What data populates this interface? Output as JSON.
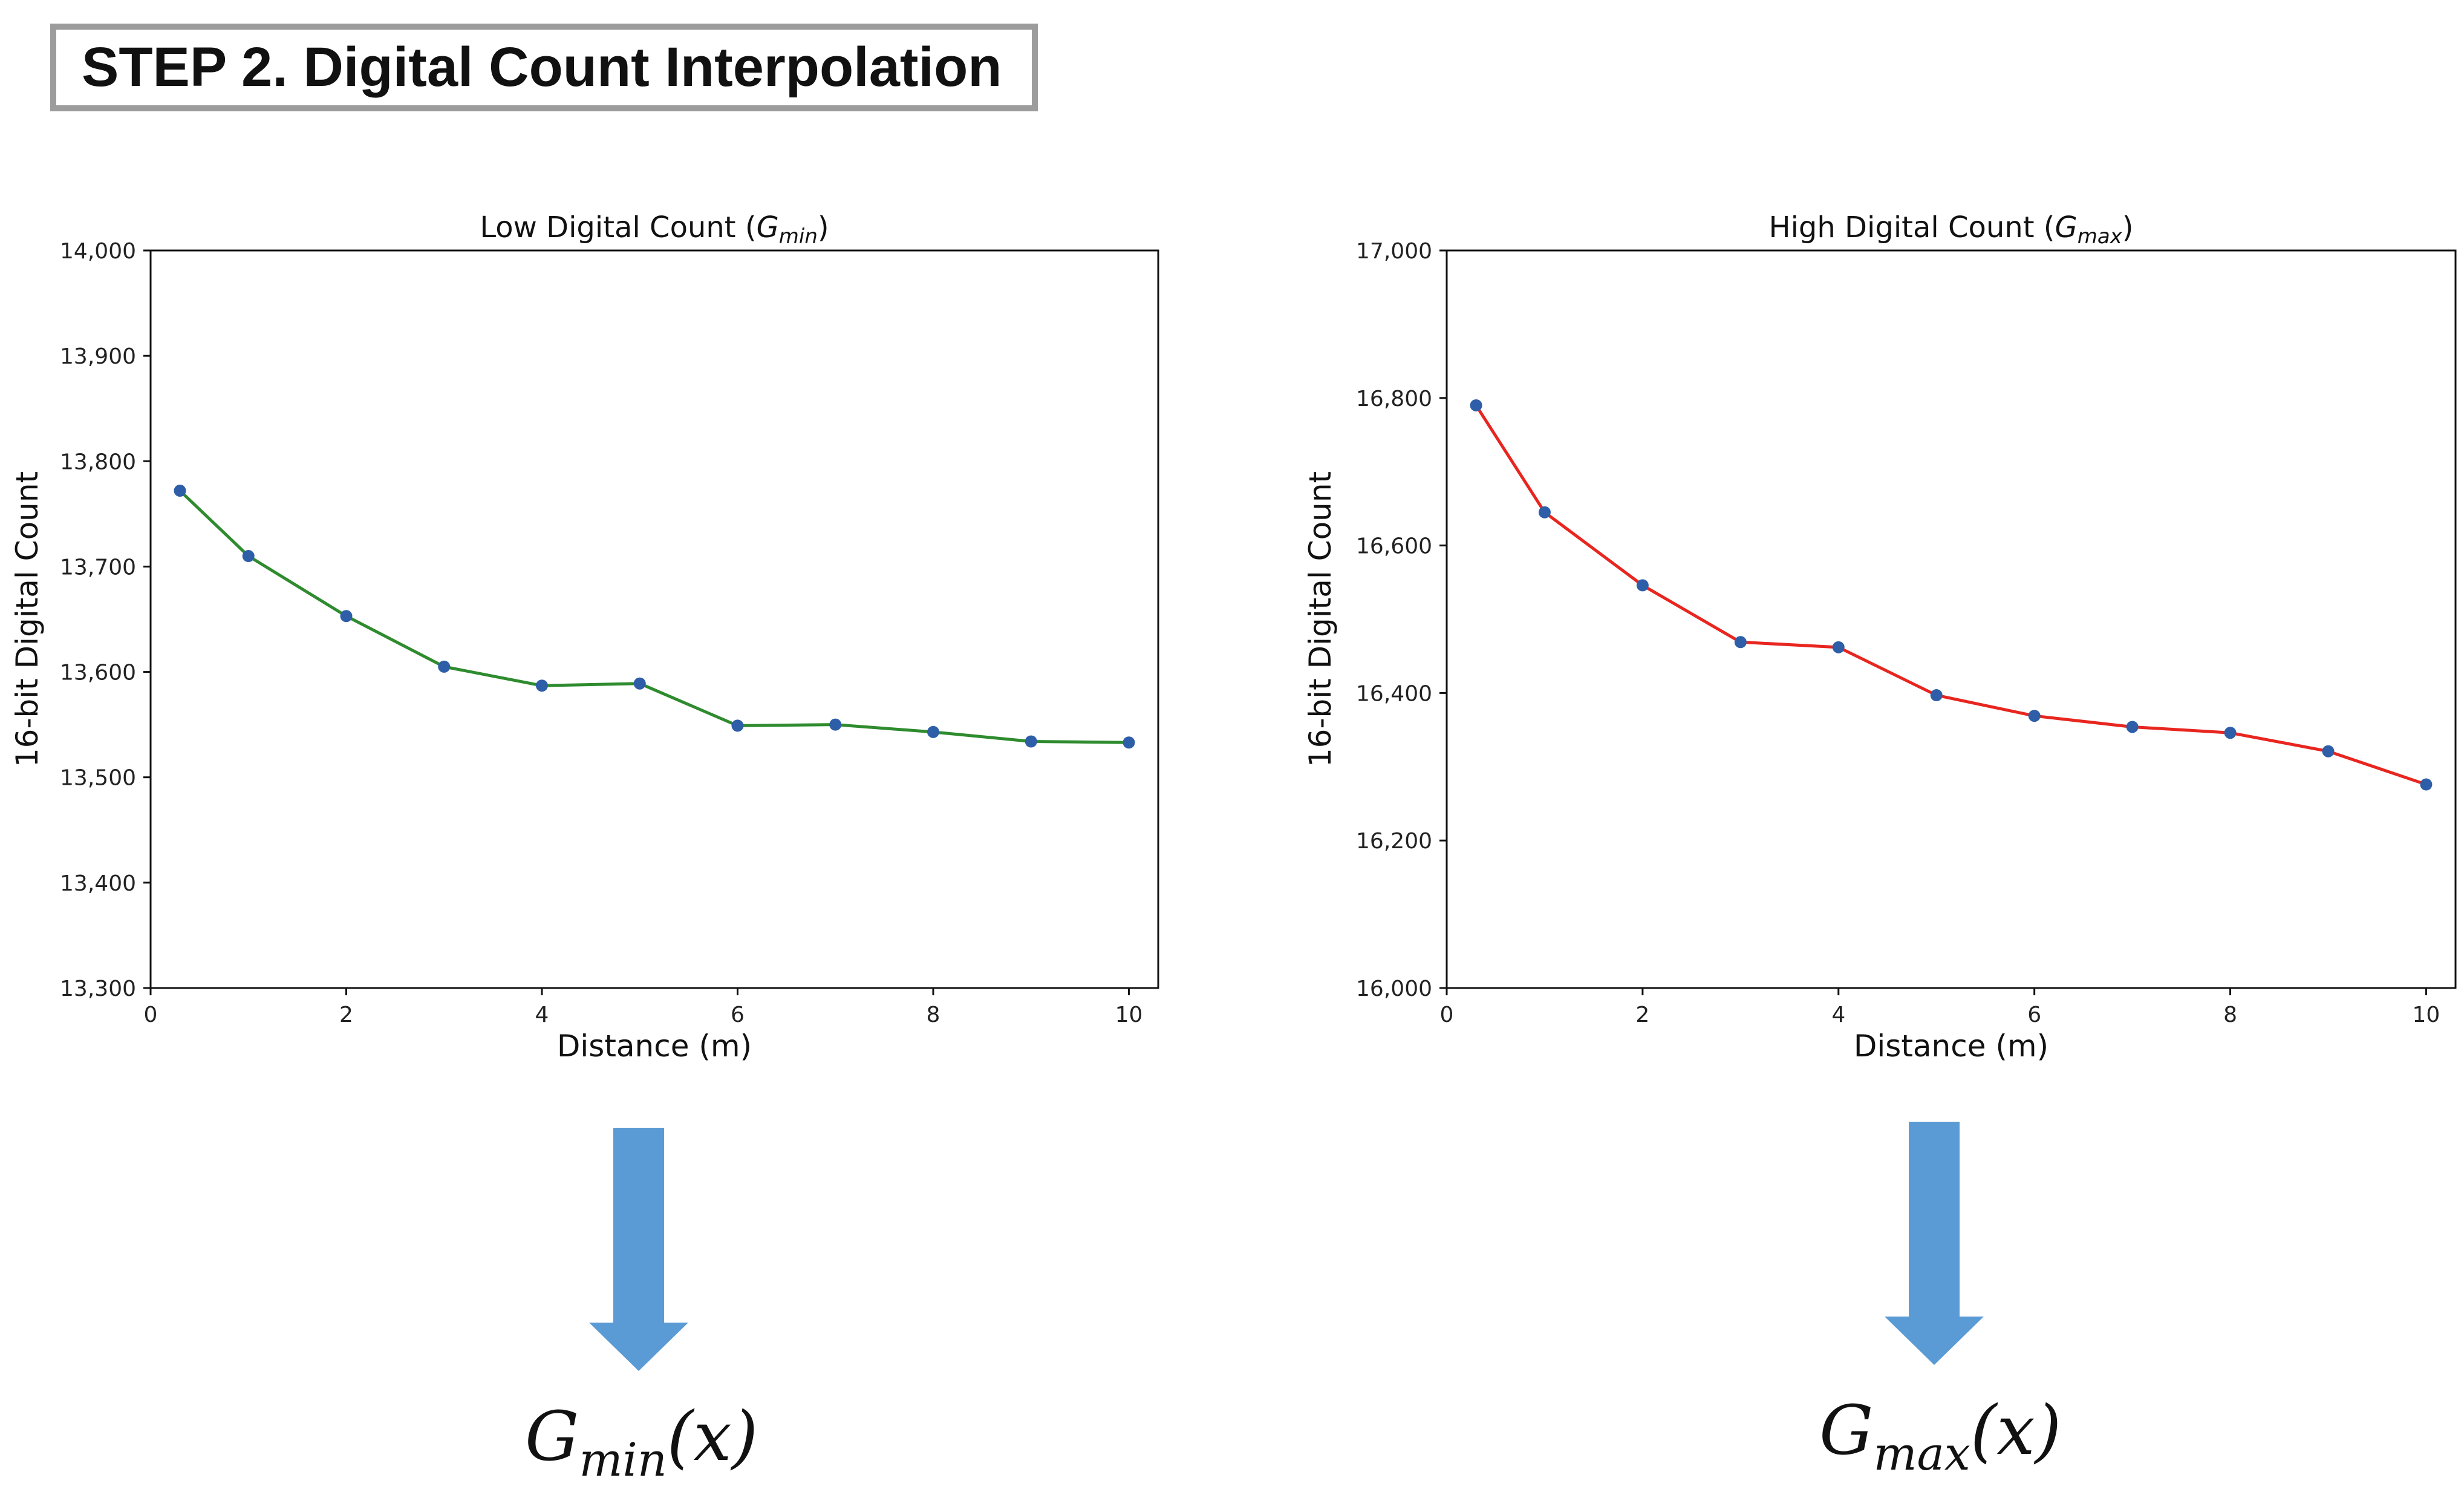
{
  "header": {
    "title": "STEP 2. Digital Count Interpolation"
  },
  "colors": {
    "arrow": "#5b9bd5",
    "marker": "#2e5ea8",
    "left_line": "#2e8b2e",
    "right_line": "#e8261f"
  },
  "chart_data": [
    {
      "type": "line",
      "title_prefix": "Low Digital Count (",
      "title_var": "G",
      "title_sub": "min",
      "title_suffix": ")",
      "xlabel": "Distance (m)",
      "ylabel": "16-bit Digital Count",
      "xlim": [
        0,
        10.3
      ],
      "ylim": [
        13300,
        14000
      ],
      "xticks": [
        0,
        2,
        4,
        6,
        8,
        10
      ],
      "xtick_labels": [
        "0",
        "2",
        "4",
        "6",
        "8",
        "10"
      ],
      "yticks": [
        13300,
        13400,
        13500,
        13600,
        13700,
        13800,
        13900,
        14000
      ],
      "ytick_labels": [
        "13,300",
        "13,400",
        "13,500",
        "13,600",
        "13,700",
        "13,800",
        "13,900",
        "14,000"
      ],
      "x": [
        0.3,
        1,
        2,
        3,
        4,
        5,
        6,
        7,
        8,
        9,
        10
      ],
      "y": [
        13772,
        13710,
        13653,
        13605,
        13587,
        13589,
        13549,
        13550,
        13543,
        13534,
        13533
      ],
      "line_color": "#2e8b2e",
      "marker_color": "#2e5ea8"
    },
    {
      "type": "line",
      "title_prefix": "High Digital Count (",
      "title_var": "G",
      "title_sub": "max",
      "title_suffix": ")",
      "xlabel": "Distance (m)",
      "ylabel": "16-bit Digital Count",
      "xlim": [
        0,
        10.3
      ],
      "ylim": [
        16000,
        17000
      ],
      "xticks": [
        0,
        2,
        4,
        6,
        8,
        10
      ],
      "xtick_labels": [
        "0",
        "2",
        "4",
        "6",
        "8",
        "10"
      ],
      "yticks": [
        16000,
        16200,
        16400,
        16600,
        16800,
        17000
      ],
      "ytick_labels": [
        "16,000",
        "16,200",
        "16,400",
        "16,600",
        "16,800",
        "17,000"
      ],
      "x": [
        0.3,
        1,
        2,
        3,
        4,
        5,
        6,
        7,
        8,
        9,
        10
      ],
      "y": [
        16790,
        16645,
        16546,
        16469,
        16462,
        16397,
        16369,
        16354,
        16346,
        16321,
        16276
      ],
      "line_color": "#e8261f",
      "marker_color": "#2e5ea8"
    }
  ],
  "formulas": [
    {
      "var": "G",
      "sub": "min",
      "arg": "(x)"
    },
    {
      "var": "G",
      "sub": "max",
      "arg": "(x)"
    }
  ]
}
